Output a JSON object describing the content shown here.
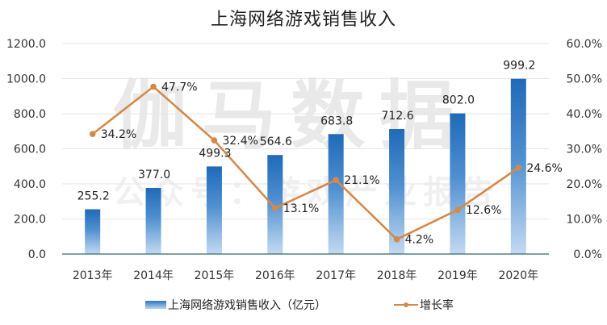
{
  "title": "上海网络游戏销售收入",
  "watermark": {
    "main": "伽马数据",
    "sub": "公众号：游戏产业报告"
  },
  "legend": {
    "bar_label": "上海网络游戏销售收入（亿元）",
    "line_label": "增长率"
  },
  "colors": {
    "bar_top": "#1f6ab8",
    "bar_bottom": "#c3daf1",
    "line": "#d4894a",
    "axis": "#2e6b6b",
    "grid": "#e4e4e4"
  },
  "chart_data": {
    "type": "bar+line",
    "title": "上海网络游戏销售收入",
    "categories": [
      "2013年",
      "2014年",
      "2015年",
      "2016年",
      "2017年",
      "2018年",
      "2019年",
      "2020年"
    ],
    "series": [
      {
        "name": "上海网络游戏销售收入（亿元）",
        "type": "bar",
        "axis": "left",
        "values": [
          255.2,
          377.0,
          499.3,
          564.6,
          683.8,
          712.6,
          802.0,
          999.2
        ],
        "labels": [
          "255.2",
          "377.0",
          "499.3",
          "564.6",
          "683.8",
          "712.6",
          "802.0",
          "999.2"
        ]
      },
      {
        "name": "增长率",
        "type": "line",
        "axis": "right",
        "values": [
          34.2,
          47.7,
          32.4,
          13.1,
          21.1,
          4.2,
          12.6,
          24.6
        ],
        "labels": [
          "34.2%",
          "47.7%",
          "32.4%",
          "13.1%",
          "21.1%",
          "4.2%",
          "12.6%",
          "24.6%"
        ]
      }
    ],
    "y_left": {
      "ticks": [
        "0.0",
        "200.0",
        "400.0",
        "600.0",
        "800.0",
        "1000.0",
        "1200.0"
      ],
      "range": [
        0,
        1200
      ]
    },
    "y_right": {
      "ticks": [
        "0.0%",
        "10.0%",
        "20.0%",
        "30.0%",
        "40.0%",
        "50.0%",
        "60.0%"
      ],
      "range": [
        0,
        60
      ]
    },
    "xlabel": "",
    "ylabel": "",
    "grid": true,
    "legend_position": "bottom"
  }
}
